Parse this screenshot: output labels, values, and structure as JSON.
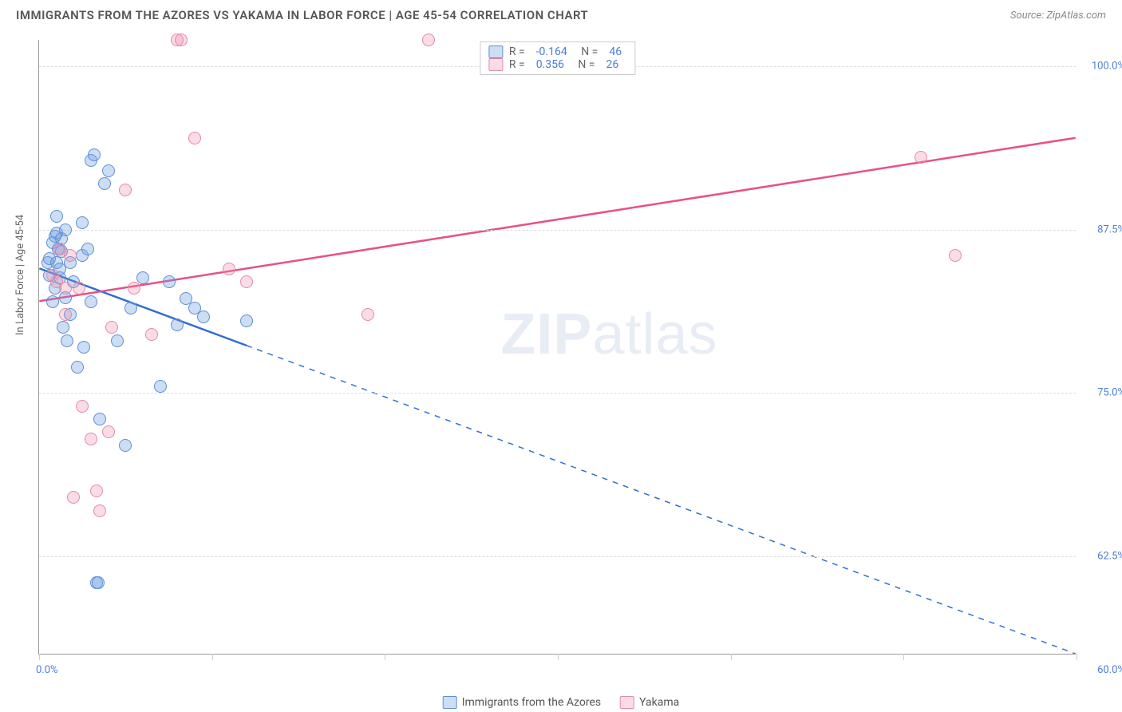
{
  "header": {
    "title": "IMMIGRANTS FROM THE AZORES VS YAKAMA IN LABOR FORCE | AGE 45-54 CORRELATION CHART",
    "source": "Source: ZipAtlas.com"
  },
  "watermark": {
    "bold": "ZIP",
    "light": "atlas"
  },
  "chart": {
    "type": "scatter",
    "ylabel": "In Labor Force | Age 45-54",
    "xlim": [
      0,
      60
    ],
    "ylim": [
      55,
      102
    ],
    "xticks": [
      0,
      10,
      20,
      30,
      40,
      50,
      60
    ],
    "xtick_labels": {
      "0": "0.0%",
      "60": "60.0%"
    },
    "yticks": [
      62.5,
      75.0,
      87.5,
      100.0
    ],
    "ytick_labels": [
      "62.5%",
      "75.0%",
      "87.5%",
      "100.0%"
    ],
    "grid_color": "#dddddd",
    "axis_color": "#999999",
    "background_color": "#ffffff",
    "point_radius": 8,
    "series": [
      {
        "name": "Immigrants from the Azores",
        "fill_color": "rgba(108,158,224,0.35)",
        "stroke_color": "#5c8fd6",
        "line_color": "#2f6fd0",
        "r_value": "-0.164",
        "n_value": "46",
        "trend": {
          "x1": 0,
          "y1": 84.5,
          "x2": 60,
          "y2": 55.0,
          "solid_until_x": 12
        },
        "points": [
          [
            0.5,
            85.0
          ],
          [
            0.6,
            84.0
          ],
          [
            0.6,
            85.3
          ],
          [
            0.8,
            82.0
          ],
          [
            0.8,
            86.5
          ],
          [
            0.9,
            83.0
          ],
          [
            0.9,
            87.0
          ],
          [
            1.0,
            88.5
          ],
          [
            1.0,
            85.0
          ],
          [
            1.0,
            87.2
          ],
          [
            1.1,
            86.0
          ],
          [
            1.2,
            83.8
          ],
          [
            1.2,
            84.5
          ],
          [
            1.3,
            85.8
          ],
          [
            1.3,
            86.8
          ],
          [
            1.4,
            80.0
          ],
          [
            1.5,
            82.3
          ],
          [
            1.5,
            87.5
          ],
          [
            1.6,
            79.0
          ],
          [
            1.8,
            81.0
          ],
          [
            1.8,
            85.0
          ],
          [
            2.0,
            83.5
          ],
          [
            2.2,
            77.0
          ],
          [
            2.5,
            88.0
          ],
          [
            2.5,
            85.5
          ],
          [
            2.6,
            78.5
          ],
          [
            2.8,
            86.0
          ],
          [
            3.0,
            82.0
          ],
          [
            3.0,
            92.8
          ],
          [
            3.2,
            93.2
          ],
          [
            3.3,
            60.5
          ],
          [
            3.4,
            60.5
          ],
          [
            3.5,
            73.0
          ],
          [
            3.8,
            91.0
          ],
          [
            4.0,
            92.0
          ],
          [
            4.5,
            79.0
          ],
          [
            5.0,
            71.0
          ],
          [
            5.3,
            81.5
          ],
          [
            6.0,
            83.8
          ],
          [
            7.0,
            75.5
          ],
          [
            7.5,
            83.5
          ],
          [
            8.0,
            80.2
          ],
          [
            8.5,
            82.2
          ],
          [
            9.0,
            81.5
          ],
          [
            9.5,
            80.8
          ],
          [
            12.0,
            80.5
          ]
        ]
      },
      {
        "name": "Yakama",
        "fill_color": "rgba(240,140,170,0.30)",
        "stroke_color": "#e589a8",
        "line_color": "#e94f86",
        "r_value": "0.356",
        "n_value": "26",
        "trend": {
          "x1": 0,
          "y1": 82.0,
          "x2": 60,
          "y2": 94.5,
          "solid_until_x": 60
        },
        "points": [
          [
            0.8,
            84.0
          ],
          [
            1.0,
            83.5
          ],
          [
            1.2,
            86.0
          ],
          [
            1.5,
            83.0
          ],
          [
            1.5,
            81.0
          ],
          [
            1.8,
            85.5
          ],
          [
            2.0,
            67.0
          ],
          [
            2.3,
            83.0
          ],
          [
            2.5,
            74.0
          ],
          [
            3.0,
            71.5
          ],
          [
            3.3,
            67.5
          ],
          [
            3.5,
            66.0
          ],
          [
            4.0,
            72.0
          ],
          [
            4.2,
            80.0
          ],
          [
            5.0,
            90.5
          ],
          [
            5.5,
            83.0
          ],
          [
            6.5,
            79.5
          ],
          [
            8.0,
            102.0
          ],
          [
            8.2,
            102.0
          ],
          [
            9.0,
            94.5
          ],
          [
            11.0,
            84.5
          ],
          [
            12.0,
            83.5
          ],
          [
            19.0,
            81.0
          ],
          [
            22.5,
            102.0
          ],
          [
            51.0,
            93.0
          ],
          [
            53.0,
            85.5
          ]
        ]
      }
    ]
  },
  "legend_bottom": [
    {
      "label": "Immigrants from the Azores",
      "fill": "rgba(108,158,224,0.35)",
      "stroke": "#5c8fd6"
    },
    {
      "label": "Yakama",
      "fill": "rgba(240,140,170,0.30)",
      "stroke": "#e589a8"
    }
  ]
}
